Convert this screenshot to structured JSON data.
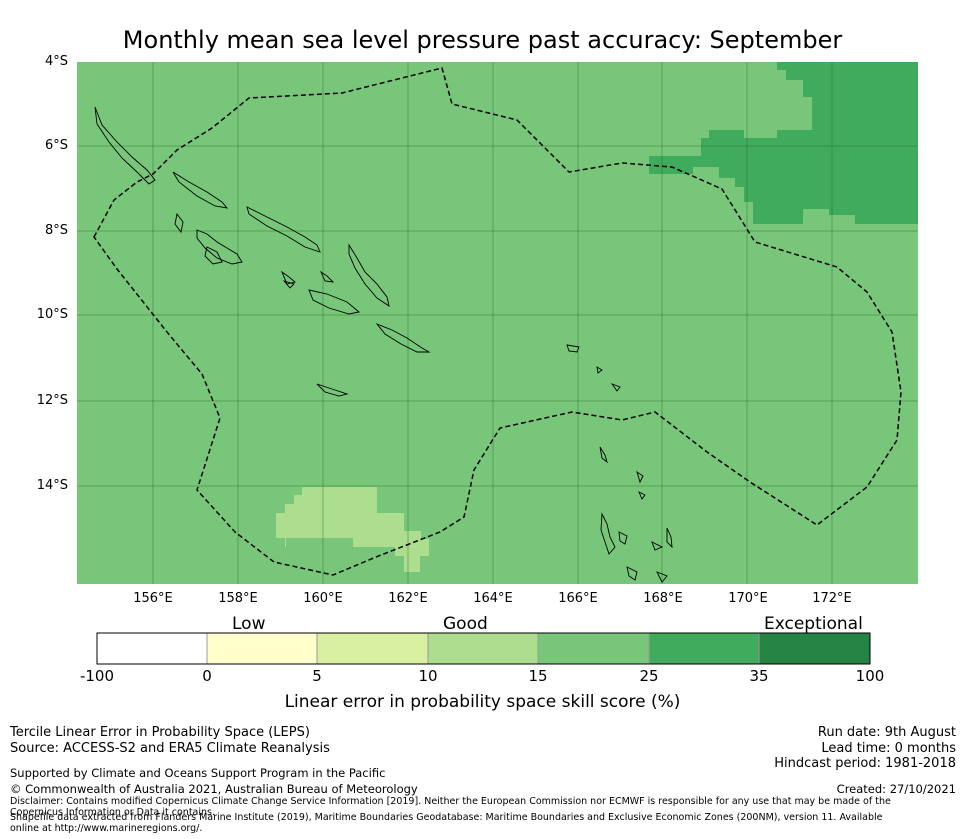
{
  "title": "Monthly mean sea level pressure past accuracy: September",
  "lat_labels": [
    "4°S",
    "6°S",
    "8°S",
    "10°S",
    "12°S",
    "14°S"
  ],
  "lon_labels": [
    "156°E",
    "158°E",
    "160°E",
    "162°E",
    "164°E",
    "166°E",
    "168°E",
    "170°E",
    "172°E"
  ],
  "colorbar": {
    "categories": [
      "Low",
      "Good",
      "Exceptional"
    ],
    "ticks": [
      "-100",
      "0",
      "5",
      "10",
      "15",
      "25",
      "35",
      "100"
    ],
    "colors": [
      "#ffffff",
      "#ffffcc",
      "#d9f0a3",
      "#addd8e",
      "#78c679",
      "#41ab5d",
      "#238443"
    ],
    "title": "Linear error in probability space skill score (%)"
  },
  "map": {
    "background_color": "#78c679",
    "regions": [
      {
        "category": "35 to 25",
        "color": "#41ab5d"
      },
      {
        "category": "10 to 15",
        "color": "#addd8e"
      }
    ]
  },
  "footer": {
    "left_line1": "Tercile Linear Error in Probability Space (LEPS)",
    "left_line2": "Source: ACCESS-S2 and ERA5 Climate Reanalysis",
    "support": "Supported by Climate and Oceans Support Program in the Pacific",
    "copyright": "© Commonwealth of Australia 2021, Australian Bureau of Meteorology",
    "disclaimer": "Disclaimer: Contains modified Copernicus Climate Change Service Information [2019]. Neither the European Commission nor ECMWF is responsible for any use that may be made of the Copernicus Information or Data it contains.",
    "shapefile": "Shapefile data extracted from Flanders Marine Institute (2019), Maritime Boundaries Geodatabase: Maritime Boundaries and Exclusive Economic Zones (200NM), version 11. Available online at http://www.marineregions.org/.",
    "run_date": "Run date: 9th August",
    "lead_time": "Lead time: 0 months",
    "hindcast": "Hindcast period: 1981-2018",
    "created": "Created: 27/10/2021"
  }
}
